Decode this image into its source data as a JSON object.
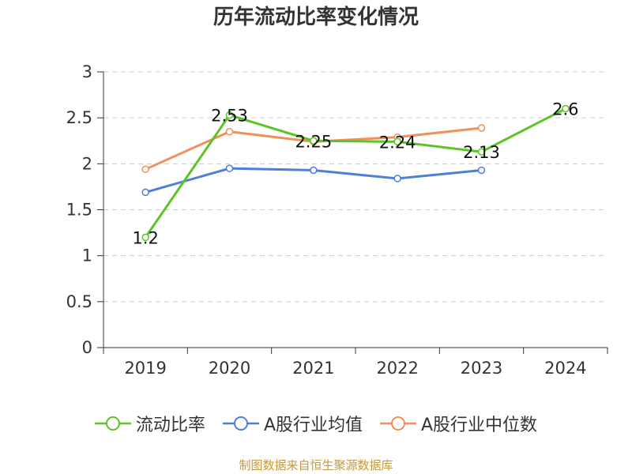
{
  "title": "历年流动比率变化情况",
  "source": "制图数据来自恒生聚源数据库",
  "colors": {
    "current_ratio": "#5cc427",
    "industry_avg": "#4e7fd9",
    "industry_median": "#f0915c",
    "axis": "#333333",
    "grid": "#cccccc"
  },
  "chart_data": {
    "type": "line",
    "title": "历年流动比率变化情况",
    "xlabel": "",
    "ylabel": "",
    "ylim": [
      0,
      3
    ],
    "yticks": [
      "0",
      "0.5",
      "1",
      "1.5",
      "2",
      "2.5",
      "3"
    ],
    "categories": [
      "2019",
      "2020",
      "2021",
      "2022",
      "2023",
      "2024"
    ],
    "series": [
      {
        "name": "流动比率",
        "color": "#5cc427",
        "values": [
          1.2,
          2.53,
          2.25,
          2.24,
          2.13,
          2.6
        ],
        "labels": [
          "1.2",
          "2.53",
          "2.25",
          "2.24",
          "2.13",
          "2.6"
        ]
      },
      {
        "name": "A股行业均值",
        "color": "#4e7fd9",
        "values": [
          1.69,
          1.95,
          1.93,
          1.84,
          1.93,
          null
        ]
      },
      {
        "name": "A股行业中位数",
        "color": "#f0915c",
        "values": [
          1.94,
          2.35,
          2.24,
          2.29,
          2.39,
          null
        ]
      }
    ],
    "grid": true,
    "legend": "bottom"
  }
}
